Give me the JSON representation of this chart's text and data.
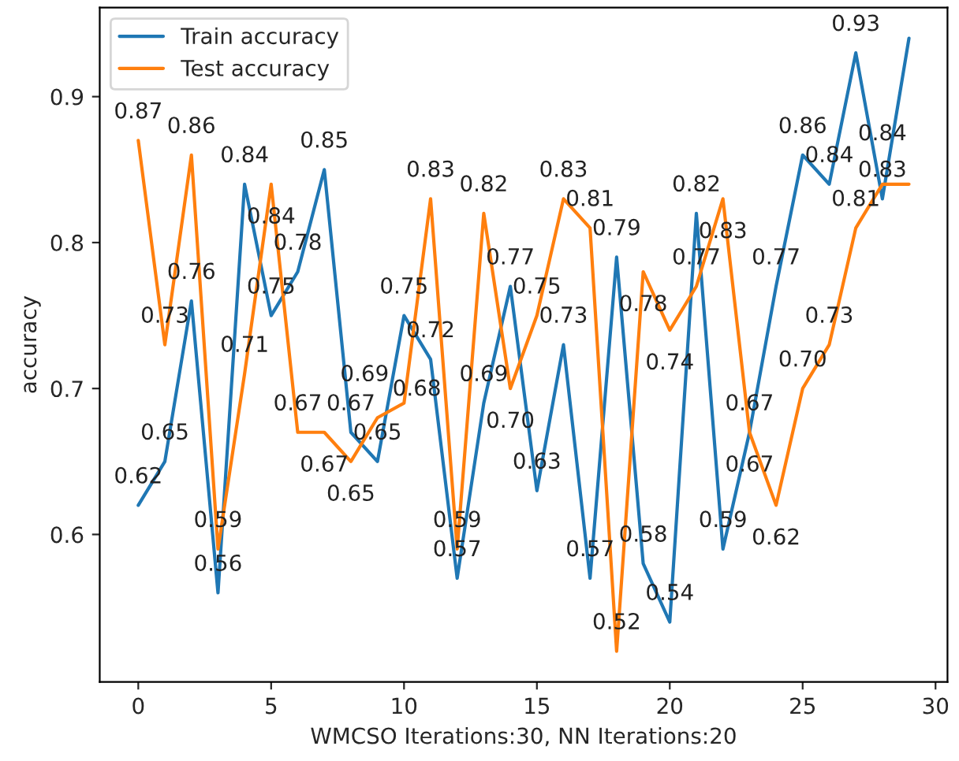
{
  "chart_data": {
    "type": "line",
    "xlabel": "WMCSO Iterations:30, NN Iterations:20",
    "ylabel": "accuracy",
    "x": [
      0,
      1,
      2,
      3,
      4,
      5,
      6,
      7,
      8,
      9,
      10,
      11,
      12,
      13,
      14,
      15,
      16,
      17,
      18,
      19,
      20,
      21,
      22,
      23,
      24,
      25,
      26,
      27,
      28,
      29
    ],
    "series": [
      {
        "name": "Train accuracy",
        "color": "#1f77b4",
        "values": [
          0.62,
          0.65,
          0.76,
          0.56,
          0.84,
          0.75,
          0.78,
          0.85,
          0.67,
          0.65,
          0.75,
          0.72,
          0.57,
          0.69,
          0.77,
          0.63,
          0.73,
          0.57,
          0.79,
          0.58,
          0.54,
          0.82,
          0.59,
          0.67,
          0.77,
          0.86,
          0.84,
          0.93,
          0.83,
          0.94
        ],
        "value_labels": [
          "0.62",
          "0.65",
          "0.76",
          "0.56",
          "0.84",
          "0.75",
          "0.78",
          "0.85",
          "0.67",
          "0.65",
          "0.75",
          "0.72",
          "0.57",
          "0.69",
          "0.77",
          "0.63",
          "0.73",
          "0.57",
          "0.79",
          "0.58",
          "0.54",
          "0.82",
          "0.59",
          "0.67",
          "0.77",
          "0.86",
          "0.84",
          "0.93",
          "0.83",
          null
        ]
      },
      {
        "name": "Test accuracy",
        "color": "#ff7f0e",
        "values": [
          0.87,
          0.73,
          0.86,
          0.59,
          0.71,
          0.84,
          0.67,
          0.67,
          0.65,
          0.68,
          0.69,
          0.83,
          0.59,
          0.82,
          0.7,
          0.75,
          0.83,
          0.81,
          0.52,
          0.78,
          0.74,
          0.77,
          0.83,
          0.67,
          0.62,
          0.7,
          0.73,
          0.81,
          0.84,
          0.84
        ],
        "value_labels": [
          "0.87",
          "0.73",
          "0.86",
          "0.59",
          "0.71",
          "0.84",
          "0.67",
          "0.67",
          "0.65",
          "0.68",
          "0.69",
          "0.83",
          "0.59",
          "0.82",
          "0.70",
          "0.75",
          "0.83",
          "0.81",
          "0.52",
          "0.78",
          "0.74",
          "0.77",
          "0.83",
          "0.67",
          "0.62",
          "0.70",
          "0.73",
          "0.81",
          "0.84",
          null
        ]
      }
    ],
    "xlim": [
      -1.45,
      30.45
    ],
    "ylim": [
      0.499,
      0.961
    ],
    "xticks": [
      0,
      5,
      10,
      15,
      20,
      25,
      30
    ],
    "yticks": [
      0.6,
      0.7,
      0.8,
      0.9
    ],
    "legend": "top left",
    "grid": false
  }
}
